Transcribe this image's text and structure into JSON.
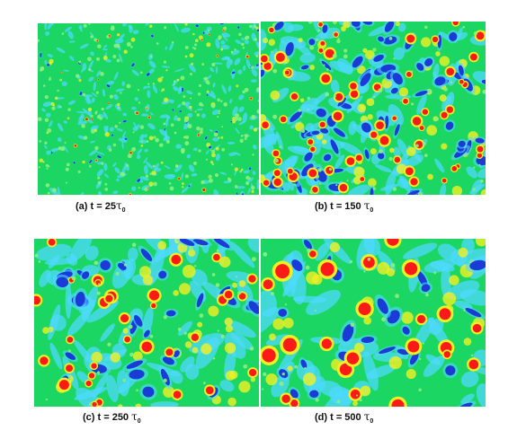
{
  "colors": {
    "background_field": "#1bd663",
    "cyan": "#4fd9ff",
    "blue": "#1a3bd6",
    "red": "#ff1a1a",
    "yellow": "#f2f020",
    "light_green": "#8ef07a"
  },
  "figure": {
    "panels": [
      {
        "id": "a",
        "label": "(a) t = 25",
        "symbol": "τ",
        "subscript": "0"
      },
      {
        "id": "b",
        "label": "(b) t = 150",
        "symbol": "τ",
        "subscript": "0"
      },
      {
        "id": "c",
        "label": "(c) t = 250",
        "symbol": "τ",
        "subscript": "0"
      },
      {
        "id": "d",
        "label": "(d) t = 500",
        "symbol": "τ",
        "subscript": "0"
      }
    ]
  }
}
